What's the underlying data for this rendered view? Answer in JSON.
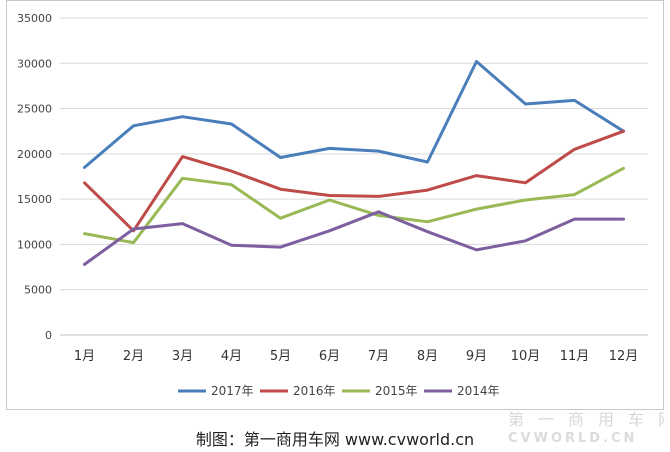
{
  "chart_data": {
    "type": "line",
    "categories": [
      "1月",
      "2月",
      "3月",
      "4月",
      "5月",
      "6月",
      "7月",
      "8月",
      "9月",
      "10月",
      "11月",
      "12月"
    ],
    "series": [
      {
        "name": "2017年",
        "color": "#4a7ebb",
        "values": [
          18500,
          23100,
          24100,
          23300,
          19600,
          20600,
          20300,
          19100,
          30200,
          25500,
          25900,
          22500
        ]
      },
      {
        "name": "2016年",
        "color": "#be4b48",
        "values": [
          16800,
          11500,
          19700,
          18100,
          16100,
          15400,
          15300,
          16000,
          17600,
          16800,
          20500,
          22500
        ]
      },
      {
        "name": "2015年",
        "color": "#98b954",
        "values": [
          11200,
          10200,
          17300,
          16600,
          12900,
          14900,
          13200,
          12500,
          13900,
          14900,
          15500,
          18400
        ]
      },
      {
        "name": "2014年",
        "color": "#7d5fa0",
        "values": [
          7800,
          11700,
          12300,
          9900,
          9700,
          11500,
          13600,
          11400,
          9400,
          10400,
          12800,
          12800
        ]
      }
    ],
    "ylim": [
      0,
      35000
    ],
    "yticks": [
      "0",
      "5000",
      "10000",
      "15000",
      "20000",
      "25000",
      "30000",
      "35000"
    ],
    "grid": true,
    "legend_position": "bottom"
  },
  "caption": "制图：第一商用车网 www.cvworld.cn",
  "watermark": {
    "text_cn": "第一商用车网",
    "text_en": "CVWORLD.CN"
  }
}
